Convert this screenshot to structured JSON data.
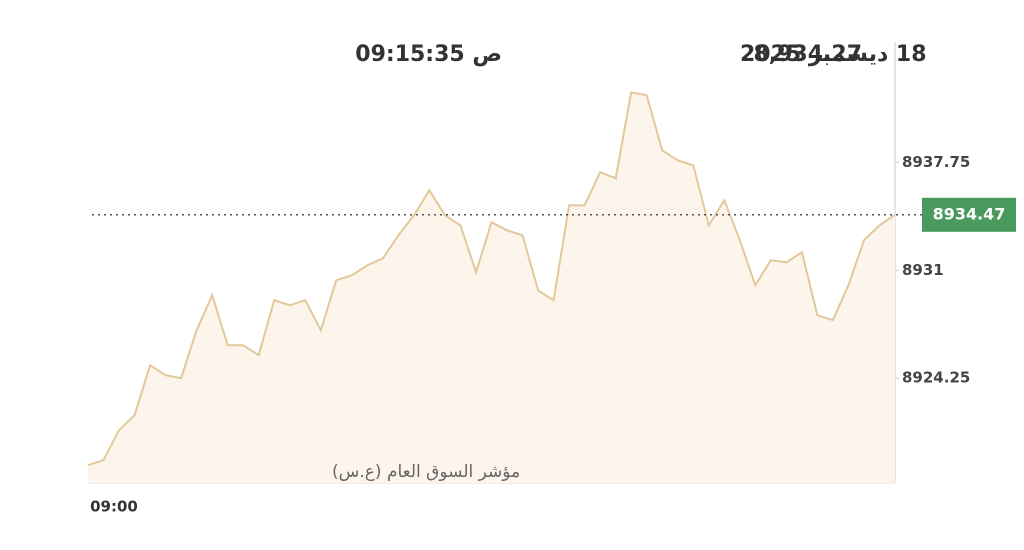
{
  "chart_data": {
    "type": "line",
    "header_price": "8,934.27",
    "header_date": "18 ديسمبر 2025",
    "header_time": "09:15:35 ص",
    "watermark": "مؤشر السوق العام (ع.س)",
    "categories": [
      "09:00",
      null,
      null,
      null,
      null,
      null,
      null,
      null,
      null,
      null,
      null,
      null,
      null,
      null,
      null,
      null,
      null,
      null,
      null,
      null,
      null,
      null,
      null,
      null,
      null,
      null,
      null,
      null,
      null,
      null,
      null,
      null,
      null,
      null,
      null,
      null,
      null,
      null,
      null,
      null,
      null,
      null,
      null,
      null,
      null,
      null,
      null,
      null,
      null,
      null,
      null,
      null,
      null
    ],
    "series": [
      {
        "name": "مؤشر السوق العام (ع.س)",
        "color": "#e3c89a",
        "values": [
          8918.81,
          8919.13,
          8921.0,
          8921.94,
          8925.06,
          8924.44,
          8924.25,
          8927.25,
          8929.44,
          8926.31,
          8926.31,
          8925.69,
          8929.13,
          8928.81,
          8929.13,
          8927.25,
          8930.38,
          8930.69,
          8931.31,
          8931.75,
          8933.19,
          8934.44,
          8936.0,
          8934.44,
          8933.81,
          8930.88,
          8934.0,
          8933.5,
          8933.19,
          8929.75,
          8929.13,
          8935.06,
          8935.06,
          8937.13,
          8936.75,
          8942.13,
          8941.94,
          8938.5,
          8937.88,
          8937.56,
          8933.81,
          8935.38,
          8932.88,
          8930.06,
          8931.63,
          8931.5,
          8932.13,
          8928.19,
          8927.88,
          8930.06,
          8932.88,
          8933.81,
          8934.47
        ]
      }
    ],
    "last_value": 8934.47,
    "last_value_color": "#4a9a5e",
    "ylim": [
      8917.7,
      8945.4
    ],
    "yticks": [
      8924.25,
      8931.0,
      8937.75
    ]
  }
}
